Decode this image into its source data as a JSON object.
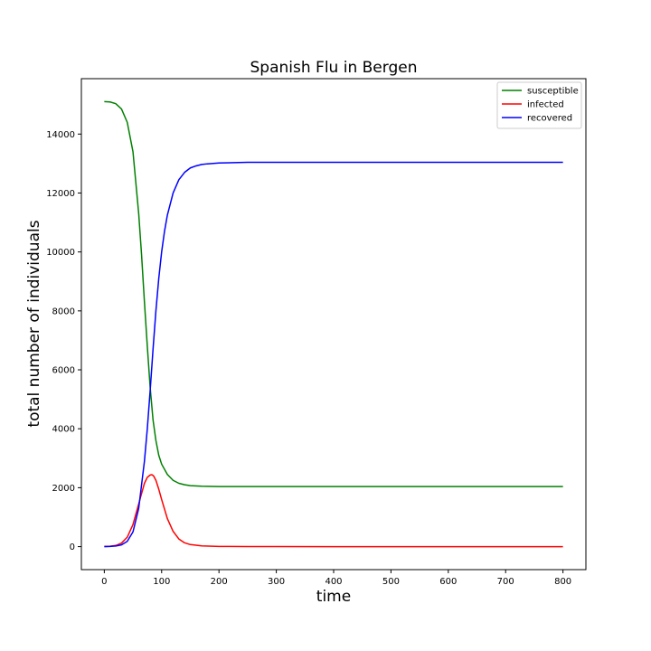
{
  "chart_data": {
    "type": "line",
    "title": "Spanish Flu in Bergen",
    "xlabel": "time",
    "ylabel": "total number of individuals",
    "xlim": [
      -40,
      840
    ],
    "ylim": [
      -780,
      15880
    ],
    "xticks": [
      0,
      100,
      200,
      300,
      400,
      500,
      600,
      700,
      800
    ],
    "yticks": [
      0,
      2000,
      4000,
      6000,
      8000,
      10000,
      12000,
      14000
    ],
    "grid": false,
    "legend_position": "top-right",
    "series": [
      {
        "name": "susceptible",
        "color": "#008000",
        "x": [
          0,
          10,
          20,
          30,
          40,
          50,
          60,
          65,
          70,
          75,
          80,
          85,
          90,
          95,
          100,
          110,
          120,
          130,
          140,
          150,
          170,
          200,
          250,
          300,
          400,
          500,
          600,
          700,
          800
        ],
        "y": [
          15100,
          15090,
          15030,
          14850,
          14400,
          13400,
          11300,
          9900,
          8300,
          6800,
          5400,
          4300,
          3600,
          3100,
          2800,
          2450,
          2250,
          2150,
          2100,
          2070,
          2050,
          2040,
          2040,
          2040,
          2040,
          2040,
          2040,
          2040,
          2040
        ]
      },
      {
        "name": "infected",
        "color": "#ff0000",
        "x": [
          0,
          10,
          20,
          30,
          40,
          50,
          60,
          70,
          75,
          80,
          83,
          86,
          90,
          95,
          100,
          110,
          120,
          130,
          140,
          150,
          170,
          200,
          250,
          300,
          400,
          500,
          600,
          700,
          800
        ],
        "y": [
          10,
          15,
          40,
          120,
          320,
          750,
          1450,
          2150,
          2350,
          2430,
          2440,
          2400,
          2250,
          1950,
          1600,
          950,
          520,
          260,
          130,
          70,
          25,
          8,
          2,
          1,
          0,
          0,
          0,
          0,
          0
        ]
      },
      {
        "name": "recovered",
        "color": "#0000ff",
        "x": [
          0,
          10,
          20,
          30,
          40,
          50,
          60,
          70,
          75,
          80,
          85,
          90,
          95,
          100,
          105,
          110,
          120,
          130,
          140,
          150,
          160,
          170,
          180,
          200,
          250,
          300,
          400,
          500,
          600,
          700,
          800
        ],
        "y": [
          0,
          5,
          20,
          60,
          180,
          500,
          1300,
          2900,
          4000,
          5300,
          6700,
          8000,
          9100,
          10000,
          10700,
          11250,
          12000,
          12450,
          12700,
          12850,
          12920,
          12970,
          12990,
          13020,
          13040,
          13040,
          13040,
          13040,
          13040,
          13040,
          13040
        ]
      }
    ]
  }
}
